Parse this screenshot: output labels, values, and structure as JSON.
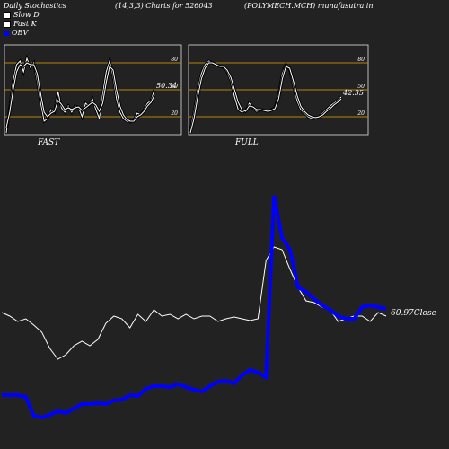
{
  "header": {
    "title": "Daily Stochastics",
    "params": "(14,3,3) Charts for 526043",
    "symbol": "(POLYMECH.MCH) munafasutra.in"
  },
  "legend": [
    {
      "label": "Slow  D",
      "color": "#ffffff"
    },
    {
      "label": "Fast K",
      "color": "#ffffff"
    },
    {
      "label": "OBV",
      "color": "#0000ff"
    }
  ],
  "colors": {
    "background": "#222222",
    "grid": "#b8860b",
    "line": "#ffffff",
    "obv": "#0000ff"
  },
  "chart_data": [
    {
      "type": "line",
      "panel": "FAST",
      "ylim": [
        0,
        100
      ],
      "yticks": [
        20,
        50,
        80
      ],
      "last_label": "50.34",
      "series": [
        {
          "name": "Fast K",
          "values": [
            2,
            30,
            60,
            78,
            82,
            70,
            85,
            75,
            80,
            60,
            35,
            15,
            18,
            28,
            25,
            48,
            30,
            25,
            32,
            25,
            32,
            30,
            20,
            35,
            32,
            40,
            28,
            18,
            45,
            70,
            82,
            65,
            40,
            25,
            18,
            15,
            14,
            16,
            24,
            22,
            28,
            35,
            38,
            50
          ]
        },
        {
          "name": "Slow  D",
          "values": [
            8,
            25,
            50,
            70,
            78,
            76,
            80,
            78,
            78,
            68,
            45,
            25,
            20,
            24,
            26,
            38,
            34,
            28,
            30,
            28,
            30,
            31,
            27,
            30,
            33,
            36,
            33,
            26,
            35,
            58,
            76,
            72,
            50,
            32,
            22,
            17,
            15,
            15,
            20,
            22,
            26,
            32,
            36,
            44
          ]
        }
      ]
    },
    {
      "type": "line",
      "panel": "FULL",
      "ylim": [
        0,
        100
      ],
      "yticks": [
        20,
        50,
        80
      ],
      "last_label": "42.35",
      "series": [
        {
          "name": "Fast K",
          "values": [
            5,
            25,
            50,
            68,
            78,
            82,
            80,
            78,
            76,
            75,
            70,
            60,
            42,
            28,
            25,
            26,
            35,
            30,
            26,
            28,
            27,
            26,
            28,
            30,
            45,
            68,
            78,
            72,
            55,
            38,
            28,
            24,
            20,
            18,
            18,
            20,
            24,
            28,
            32,
            35,
            38,
            42
          ]
        },
        {
          "name": "Slow  D",
          "values": [
            2,
            18,
            42,
            62,
            74,
            80,
            80,
            78,
            76,
            76,
            72,
            64,
            50,
            36,
            28,
            26,
            32,
            31,
            28,
            28,
            27,
            26,
            27,
            29,
            40,
            62,
            76,
            74,
            60,
            44,
            32,
            26,
            22,
            20,
            19,
            20,
            22,
            26,
            29,
            33,
            36,
            40
          ]
        }
      ]
    },
    {
      "type": "line",
      "panel": "OBV",
      "close_label": "60.97Close",
      "series": [
        {
          "name": "Price",
          "values": [
            348,
            352,
            358,
            355,
            362,
            370,
            388,
            400,
            395,
            385,
            380,
            385,
            378,
            360,
            352,
            355,
            365,
            350,
            358,
            345,
            352,
            350,
            355,
            350,
            355,
            352,
            352,
            358,
            355,
            353,
            355,
            357,
            355,
            290,
            275,
            278,
            300,
            320,
            335,
            337,
            342,
            345,
            358,
            355,
            352,
            352,
            358,
            348,
            352
          ]
        },
        {
          "name": "OBV",
          "values": [
            440,
            440,
            440,
            442,
            463,
            465,
            462,
            458,
            460,
            455,
            450,
            450,
            449,
            450,
            446,
            445,
            440,
            441,
            433,
            430,
            430,
            431,
            428,
            431,
            434,
            436,
            430,
            425,
            424,
            427,
            418,
            412,
            415,
            420,
            218,
            265,
            278,
            320,
            325,
            333,
            340,
            345,
            352,
            355,
            355,
            342,
            340,
            342,
            344
          ]
        }
      ]
    }
  ]
}
